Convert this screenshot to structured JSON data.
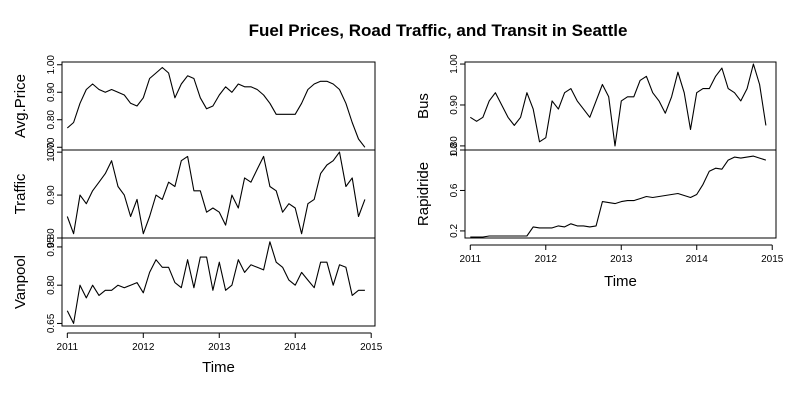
{
  "chart_data": {
    "type": "line",
    "title": "Fuel Prices, Road Traffic, and Transit in Seattle",
    "x": [
      2011.0,
      2011.0833,
      2011.1667,
      2011.25,
      2011.3333,
      2011.4167,
      2011.5,
      2011.5833,
      2011.6667,
      2011.75,
      2011.8333,
      2011.9167,
      2012.0,
      2012.0833,
      2012.1667,
      2012.25,
      2012.3333,
      2012.4167,
      2012.5,
      2012.5833,
      2012.6667,
      2012.75,
      2012.8333,
      2012.9167,
      2013.0,
      2013.0833,
      2013.1667,
      2013.25,
      2013.3333,
      2013.4167,
      2013.5,
      2013.5833,
      2013.6667,
      2013.75,
      2013.8333,
      2013.9167,
      2014.0,
      2014.0833,
      2014.1667,
      2014.25,
      2014.3333,
      2014.4167,
      2014.5,
      2014.5833,
      2014.6667,
      2014.75,
      2014.8333,
      2014.9167
    ],
    "panels": [
      {
        "column": "left",
        "ylabel": "Avg.Price",
        "ylim": [
          0.69,
          1.01
        ],
        "yticks": [
          0.7,
          0.8,
          0.9,
          1.0
        ],
        "ytick_labels": [
          "0.70",
          "0.80",
          "0.90",
          "1.00"
        ],
        "values": [
          0.77,
          0.79,
          0.86,
          0.91,
          0.93,
          0.91,
          0.9,
          0.91,
          0.9,
          0.89,
          0.86,
          0.85,
          0.88,
          0.95,
          0.97,
          0.99,
          0.97,
          0.88,
          0.93,
          0.96,
          0.95,
          0.88,
          0.84,
          0.85,
          0.89,
          0.92,
          0.9,
          0.93,
          0.92,
          0.92,
          0.91,
          0.89,
          0.86,
          0.82,
          0.82,
          0.82,
          0.82,
          0.86,
          0.91,
          0.93,
          0.94,
          0.94,
          0.93,
          0.91,
          0.86,
          0.79,
          0.73,
          0.7
        ]
      },
      {
        "column": "left",
        "ylabel": "Traffic",
        "ylim": [
          0.8,
          1.005
        ],
        "yticks": [
          0.8,
          0.9,
          1.0
        ],
        "ytick_labels": [
          "0.80",
          "0.90",
          "1.00"
        ],
        "values": [
          0.85,
          0.81,
          0.9,
          0.88,
          0.91,
          0.93,
          0.95,
          0.98,
          0.92,
          0.9,
          0.85,
          0.89,
          0.81,
          0.85,
          0.9,
          0.89,
          0.93,
          0.92,
          0.98,
          0.99,
          0.91,
          0.91,
          0.86,
          0.87,
          0.86,
          0.83,
          0.9,
          0.87,
          0.94,
          0.93,
          0.96,
          0.99,
          0.92,
          0.91,
          0.86,
          0.88,
          0.87,
          0.81,
          0.88,
          0.89,
          0.95,
          0.97,
          0.98,
          1.0,
          0.92,
          0.94,
          0.85,
          0.89
        ]
      },
      {
        "column": "left",
        "ylabel": "Vanpool",
        "ylim": [
          0.64,
          0.985
        ],
        "yticks": [
          0.65,
          0.8,
          0.95
        ],
        "ytick_labels": [
          "0.65",
          "0.80",
          "0.95"
        ],
        "values": [
          0.7,
          0.65,
          0.8,
          0.75,
          0.8,
          0.76,
          0.78,
          0.78,
          0.8,
          0.79,
          0.8,
          0.81,
          0.77,
          0.85,
          0.9,
          0.87,
          0.87,
          0.81,
          0.79,
          0.9,
          0.79,
          0.91,
          0.91,
          0.78,
          0.89,
          0.78,
          0.8,
          0.9,
          0.85,
          0.88,
          0.87,
          0.86,
          0.97,
          0.89,
          0.87,
          0.82,
          0.8,
          0.85,
          0.82,
          0.79,
          0.89,
          0.89,
          0.8,
          0.88,
          0.87,
          0.76,
          0.78,
          0.78
        ]
      },
      {
        "column": "right",
        "ylabel": "Bus",
        "ylim": [
          0.79,
          1.005
        ],
        "yticks": [
          0.8,
          0.9,
          1.0
        ],
        "ytick_labels": [
          "0.80",
          "0.90",
          "1.00"
        ],
        "values": [
          0.87,
          0.86,
          0.87,
          0.91,
          0.93,
          0.9,
          0.87,
          0.85,
          0.87,
          0.93,
          0.89,
          0.81,
          0.82,
          0.91,
          0.89,
          0.93,
          0.94,
          0.91,
          0.89,
          0.87,
          0.91,
          0.95,
          0.92,
          0.8,
          0.91,
          0.92,
          0.92,
          0.96,
          0.97,
          0.93,
          0.91,
          0.88,
          0.92,
          0.98,
          0.93,
          0.84,
          0.93,
          0.94,
          0.94,
          0.97,
          0.99,
          0.94,
          0.93,
          0.91,
          0.94,
          1.0,
          0.95,
          0.85
        ]
      },
      {
        "column": "right",
        "ylabel": "Rapidride",
        "ylim": [
          0.13,
          1.0
        ],
        "yticks": [
          0.2,
          0.6,
          1.0
        ],
        "ytick_labels": [
          "0.2",
          "0.6",
          "1.0"
        ],
        "values": [
          0.14,
          0.14,
          0.14,
          0.15,
          0.15,
          0.15,
          0.15,
          0.15,
          0.15,
          0.15,
          0.24,
          0.23,
          0.23,
          0.23,
          0.25,
          0.24,
          0.27,
          0.25,
          0.25,
          0.24,
          0.25,
          0.49,
          0.48,
          0.47,
          0.49,
          0.5,
          0.5,
          0.52,
          0.54,
          0.53,
          0.54,
          0.55,
          0.56,
          0.57,
          0.55,
          0.53,
          0.56,
          0.66,
          0.79,
          0.82,
          0.81,
          0.9,
          0.93,
          0.92,
          0.93,
          0.94,
          0.92,
          0.9
        ]
      }
    ],
    "xlim": [
      2010.93,
      2015.05
    ],
    "xticks": [
      2011,
      2012,
      2013,
      2014,
      2015
    ],
    "xtick_labels": [
      "2011",
      "2012",
      "2013",
      "2014",
      "2015"
    ],
    "xlabel": "Time"
  }
}
